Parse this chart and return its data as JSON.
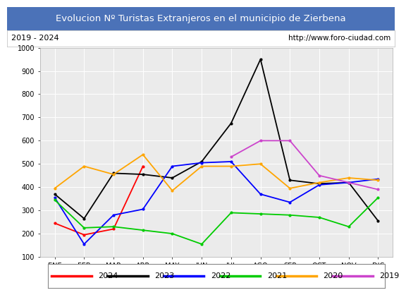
{
  "title": "Evolucion Nº Turistas Extranjeros en el municipio de Zierbena",
  "subtitle_left": "2019 - 2024",
  "subtitle_right": "http://www.foro-ciudad.com",
  "title_bg_color": "#4b72b8",
  "title_text_color": "#ffffff",
  "subtitle_bg_color": "#ffffff",
  "subtitle_text_color": "#000000",
  "plot_bg_color": "#ebebeb",
  "months": [
    "ENE",
    "FEB",
    "MAR",
    "ABR",
    "MAY",
    "JUN",
    "JUL",
    "AGO",
    "SEP",
    "OCT",
    "NOV",
    "DIC"
  ],
  "ylim": [
    100,
    1000
  ],
  "yticks": [
    100,
    200,
    300,
    400,
    500,
    600,
    700,
    800,
    900,
    1000
  ],
  "series": {
    "2024": {
      "color": "#ff0000",
      "data": [
        245,
        195,
        220,
        490,
        null,
        null,
        null,
        null,
        null,
        null,
        null,
        null
      ]
    },
    "2023": {
      "color": "#000000",
      "data": [
        370,
        265,
        460,
        455,
        440,
        510,
        675,
        950,
        430,
        415,
        420,
        255
      ]
    },
    "2022": {
      "color": "#0000ff",
      "data": [
        355,
        155,
        280,
        305,
        490,
        505,
        510,
        370,
        335,
        410,
        420,
        435
      ]
    },
    "2021": {
      "color": "#00cc00",
      "data": [
        345,
        225,
        230,
        215,
        200,
        155,
        290,
        285,
        280,
        270,
        230,
        355
      ]
    },
    "2020": {
      "color": "#ffa500",
      "data": [
        395,
        490,
        455,
        540,
        385,
        490,
        490,
        500,
        395,
        420,
        440,
        430
      ]
    },
    "2019": {
      "color": "#cc44cc",
      "data": [
        null,
        null,
        null,
        null,
        null,
        null,
        530,
        600,
        600,
        450,
        420,
        390
      ]
    }
  },
  "legend_order": [
    "2024",
    "2023",
    "2022",
    "2021",
    "2020",
    "2019"
  ]
}
